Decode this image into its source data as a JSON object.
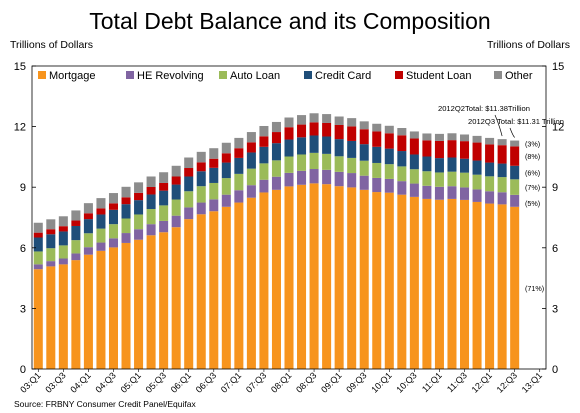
{
  "chart_data": {
    "type": "bar",
    "stacked": true,
    "title": "Total Debt Balance and its Composition",
    "ylabel_left": "Trillions of Dollars",
    "ylabel_right": "Trillions of Dollars",
    "ylim": [
      0,
      15
    ],
    "yticks": [
      "0",
      "3",
      "6",
      "9",
      "12",
      "15"
    ],
    "grid": false,
    "legend_position": "top-left",
    "xtick_labels": [
      "03:Q1",
      "03:Q3",
      "04:Q1",
      "04:Q3",
      "05:Q1",
      "05:Q3",
      "06:Q1",
      "06:Q3",
      "07:Q1",
      "07:Q3",
      "08:Q1",
      "08:Q3",
      "09:Q1",
      "09:Q3",
      "10:Q1",
      "10:Q3",
      "11:Q1",
      "11:Q3",
      "12:Q1",
      "12:Q3",
      "13:Q1"
    ],
    "categories": [
      "03:Q1",
      "03:Q2",
      "03:Q3",
      "03:Q4",
      "04:Q1",
      "04:Q2",
      "04:Q3",
      "04:Q4",
      "05:Q1",
      "05:Q2",
      "05:Q3",
      "05:Q4",
      "06:Q1",
      "06:Q2",
      "06:Q3",
      "06:Q4",
      "07:Q1",
      "07:Q2",
      "07:Q3",
      "07:Q4",
      "08:Q1",
      "08:Q2",
      "08:Q3",
      "08:Q4",
      "09:Q1",
      "09:Q2",
      "09:Q3",
      "09:Q4",
      "10:Q1",
      "10:Q2",
      "10:Q3",
      "10:Q4",
      "11:Q1",
      "11:Q2",
      "11:Q3",
      "11:Q4",
      "12:Q1",
      "12:Q2",
      "12:Q3"
    ],
    "series": [
      {
        "name": "Mortgage",
        "color": "#f7941d",
        "values": [
          4.94,
          5.08,
          5.18,
          5.39,
          5.66,
          5.85,
          6.02,
          6.24,
          6.4,
          6.62,
          6.77,
          7.02,
          7.42,
          7.66,
          7.81,
          8.03,
          8.24,
          8.48,
          8.74,
          8.87,
          9.04,
          9.12,
          9.19,
          9.15,
          9.05,
          8.99,
          8.87,
          8.76,
          8.73,
          8.63,
          8.52,
          8.42,
          8.38,
          8.42,
          8.37,
          8.27,
          8.19,
          8.15,
          8.03
        ]
      },
      {
        "name": "HE Revolving",
        "color": "#8064a2",
        "values": [
          0.24,
          0.26,
          0.29,
          0.33,
          0.37,
          0.41,
          0.45,
          0.49,
          0.52,
          0.55,
          0.56,
          0.57,
          0.58,
          0.58,
          0.59,
          0.6,
          0.61,
          0.62,
          0.63,
          0.65,
          0.67,
          0.69,
          0.71,
          0.71,
          0.71,
          0.71,
          0.7,
          0.7,
          0.68,
          0.67,
          0.66,
          0.65,
          0.64,
          0.63,
          0.62,
          0.62,
          0.61,
          0.6,
          0.59
        ]
      },
      {
        "name": "Auto Loan",
        "color": "#9bbb59",
        "values": [
          0.64,
          0.64,
          0.65,
          0.66,
          0.69,
          0.69,
          0.7,
          0.72,
          0.73,
          0.75,
          0.77,
          0.8,
          0.8,
          0.81,
          0.81,
          0.82,
          0.81,
          0.82,
          0.81,
          0.81,
          0.81,
          0.81,
          0.8,
          0.79,
          0.77,
          0.75,
          0.74,
          0.74,
          0.73,
          0.73,
          0.71,
          0.72,
          0.71,
          0.72,
          0.73,
          0.73,
          0.74,
          0.75,
          0.77
        ]
      },
      {
        "name": "Credit Card",
        "color": "#1f4e79",
        "values": [
          0.69,
          0.69,
          0.69,
          0.7,
          0.7,
          0.7,
          0.71,
          0.71,
          0.71,
          0.72,
          0.73,
          0.74,
          0.73,
          0.74,
          0.75,
          0.77,
          0.79,
          0.8,
          0.82,
          0.85,
          0.84,
          0.85,
          0.86,
          0.86,
          0.85,
          0.84,
          0.82,
          0.8,
          0.77,
          0.76,
          0.73,
          0.73,
          0.71,
          0.7,
          0.69,
          0.7,
          0.68,
          0.67,
          0.67
        ]
      },
      {
        "name": "Student Loan",
        "color": "#c00000",
        "values": [
          0.24,
          0.25,
          0.26,
          0.27,
          0.29,
          0.3,
          0.32,
          0.34,
          0.36,
          0.37,
          0.38,
          0.4,
          0.42,
          0.44,
          0.45,
          0.46,
          0.48,
          0.5,
          0.52,
          0.55,
          0.61,
          0.63,
          0.65,
          0.67,
          0.7,
          0.72,
          0.74,
          0.76,
          0.76,
          0.78,
          0.79,
          0.8,
          0.85,
          0.86,
          0.87,
          0.89,
          0.9,
          0.91,
          0.96
        ]
      },
      {
        "name": "Other",
        "color": "#8c8c8c",
        "values": [
          0.49,
          0.49,
          0.49,
          0.5,
          0.5,
          0.51,
          0.51,
          0.52,
          0.52,
          0.52,
          0.53,
          0.53,
          0.52,
          0.52,
          0.52,
          0.52,
          0.51,
          0.51,
          0.51,
          0.5,
          0.48,
          0.47,
          0.45,
          0.44,
          0.42,
          0.41,
          0.39,
          0.38,
          0.37,
          0.36,
          0.35,
          0.34,
          0.35,
          0.34,
          0.33,
          0.33,
          0.32,
          0.3,
          0.29
        ]
      }
    ],
    "annotations": [
      {
        "text": "2012Q3 Total: $11.31 Trillion",
        "target": "12:Q3"
      },
      {
        "text": "2012Q2Total: $11.38Trillion",
        "target": "12:Q2"
      }
    ],
    "composition_labels": [
      "(3%)",
      "(8%)",
      "(6%)",
      "(7%)",
      "(5%)",
      "(71%)"
    ],
    "source": "Source: FRBNY Consumer Credit Panel/Equifax"
  }
}
